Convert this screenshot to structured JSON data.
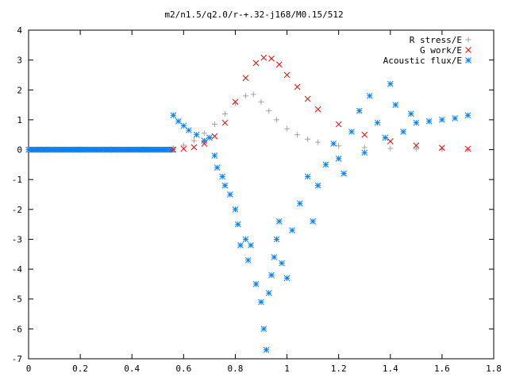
{
  "chart_data": {
    "type": "scatter",
    "title": "m2/n1.5/q2.0/r-+.32-j168/M0.15/512",
    "xlabel": "",
    "ylabel": "",
    "xlim": [
      0,
      1.8
    ],
    "ylim": [
      -7,
      4
    ],
    "x_ticks": [
      0,
      0.2,
      0.4,
      0.6,
      0.8,
      1,
      1.2,
      1.4,
      1.6,
      1.8
    ],
    "x_tick_labels": [
      "0",
      "0.2",
      "0.4",
      "0.6",
      "0.8",
      "1",
      "1.2",
      "1.4",
      "1.6",
      "1.8"
    ],
    "y_ticks": [
      -7,
      -6,
      -5,
      -4,
      -3,
      -2,
      -1,
      0,
      1,
      2,
      3,
      4
    ],
    "y_tick_labels": [
      "-7",
      "-6",
      "-5",
      "-4",
      "-3",
      "-2",
      "-1",
      "0",
      "1",
      "2",
      "3",
      "4"
    ],
    "grid": false,
    "legend_position": "top-right",
    "series": [
      {
        "name": "R stress/E",
        "marker": "plus",
        "color": "#a0a0a0",
        "x": [
          0.56,
          0.6,
          0.64,
          0.68,
          0.72,
          0.76,
          0.8,
          0.84,
          0.87,
          0.9,
          0.93,
          0.96,
          1.0,
          1.04,
          1.08,
          1.12,
          1.2,
          1.3,
          1.4,
          1.5,
          1.6,
          1.7
        ],
        "y": [
          0.05,
          0.15,
          0.3,
          0.55,
          0.85,
          1.2,
          1.55,
          1.8,
          1.85,
          1.6,
          1.3,
          1.0,
          0.7,
          0.5,
          0.35,
          0.25,
          0.13,
          0.07,
          0.04,
          0.02,
          0.01,
          0.0
        ]
      },
      {
        "name": "G work/E",
        "marker": "cross",
        "color": "#ff0000",
        "x": [
          0.56,
          0.6,
          0.64,
          0.68,
          0.72,
          0.76,
          0.8,
          0.84,
          0.88,
          0.91,
          0.94,
          0.97,
          1.0,
          1.04,
          1.08,
          1.12,
          1.2,
          1.3,
          1.4,
          1.5,
          1.6,
          1.7
        ],
        "y": [
          0.0,
          0.03,
          0.08,
          0.2,
          0.45,
          0.9,
          1.6,
          2.4,
          2.9,
          3.08,
          3.05,
          2.85,
          2.5,
          2.1,
          1.7,
          1.35,
          0.85,
          0.5,
          0.28,
          0.14,
          0.06,
          0.03
        ]
      },
      {
        "name": "Acoustic flux/E",
        "marker": "star",
        "color": "#0080ff",
        "x": [
          0.56,
          0.58,
          0.6,
          0.62,
          0.65,
          0.68,
          0.7,
          0.72,
          0.73,
          0.75,
          0.76,
          0.78,
          0.8,
          0.81,
          0.82,
          0.84,
          0.85,
          0.86,
          0.88,
          0.9,
          0.91,
          0.92,
          0.93,
          0.94,
          0.95,
          0.96,
          0.97,
          0.98,
          1.0,
          1.02,
          1.05,
          1.08,
          1.1,
          1.12,
          1.15,
          1.18,
          1.2,
          1.22,
          1.25,
          1.28,
          1.3,
          1.32,
          1.35,
          1.38,
          1.4,
          1.42,
          1.45,
          1.48,
          1.5,
          1.55,
          1.6,
          1.65,
          1.7
        ],
        "y": [
          1.15,
          0.95,
          0.8,
          0.65,
          0.5,
          0.3,
          0.4,
          -0.2,
          -0.6,
          -0.9,
          -1.2,
          -1.5,
          -2.0,
          -2.5,
          -3.2,
          -3.0,
          -3.7,
          -3.2,
          -4.5,
          -5.1,
          -6.0,
          -6.7,
          -4.8,
          -4.2,
          -3.6,
          -3.0,
          -2.4,
          -3.8,
          -4.3,
          -2.7,
          -1.8,
          -0.9,
          -2.4,
          -1.2,
          -0.5,
          0.2,
          -0.3,
          -0.8,
          0.6,
          1.3,
          -0.1,
          1.8,
          0.9,
          0.4,
          2.2,
          1.5,
          0.6,
          1.2,
          0.9,
          0.95,
          1.0,
          1.05,
          1.15
        ]
      }
    ]
  }
}
